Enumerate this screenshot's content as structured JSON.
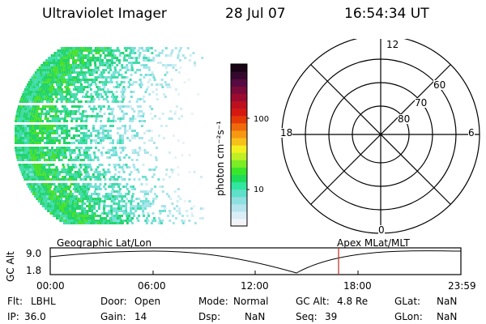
{
  "header": {
    "title": "Ultraviolet Imager",
    "date": "28 Jul 07",
    "time": "16:54:34 UT"
  },
  "colorbar": {
    "unit_label": "photon cm⁻²s⁻¹",
    "tick_labels": [
      "100",
      "10"
    ],
    "colors": [
      "#f2f4f8",
      "#d9eef6",
      "#b6e4ee",
      "#8ee0e0",
      "#5fe0c8",
      "#30e6a0",
      "#1edc5a",
      "#3ae62a",
      "#7cec26",
      "#bef024",
      "#f4f020",
      "#f8c01a",
      "#f89812",
      "#f06a0c",
      "#e43a08",
      "#d41a10",
      "#bc1020",
      "#9c0a30",
      "#7a0a3a",
      "#560a40",
      "#34082e",
      "#180414"
    ],
    "colors_order": "bottom-to-top"
  },
  "polar_plot": {
    "mlt_labels": {
      "top": "12",
      "left": "18",
      "right": "6",
      "bottom": "0"
    },
    "lat_labels": [
      "60",
      "70",
      "80"
    ]
  },
  "timeline": {
    "left_title": "Geographic Lat/Lon",
    "right_title": "Apex MLat/MLT",
    "ylabel": "GC Alt",
    "ytick_labels": [
      "9.0",
      "1.8"
    ],
    "xtick_labels": [
      "00:00",
      "06:00",
      "12:00",
      "18:00",
      "23:59"
    ],
    "current_time_marker": "16:54",
    "marker_color": "#c0392b"
  },
  "status": {
    "flt_label": "Flt:",
    "flt_value": "LBHL",
    "ip_label": "IP:",
    "ip_value": "36.0",
    "door_label": "Door:",
    "door_value": "Open",
    "gain_label": "Gain:",
    "gain_value": "14",
    "mode_label": "Mode:",
    "mode_value": "Normal",
    "dsp_label": "Dsp:",
    "dsp_value": "NaN",
    "gcalt_label": "GC Alt:",
    "gcalt_value": "4.8 Re",
    "seq_label": "Seq:",
    "seq_value": "39",
    "glat_label": "GLat:",
    "glat_value": "NaN",
    "glon_label": "GLon:",
    "glon_value": "NaN"
  }
}
